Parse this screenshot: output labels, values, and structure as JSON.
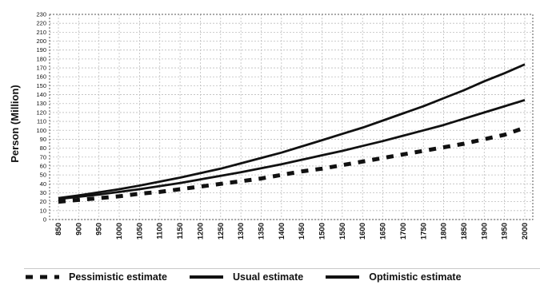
{
  "chart_data": {
    "type": "line",
    "ylabel": "Person (Million)",
    "xlabel": "",
    "x": [
      850,
      900,
      950,
      1000,
      1050,
      1100,
      1150,
      1200,
      1250,
      1300,
      1350,
      1400,
      1450,
      1500,
      1550,
      1600,
      1650,
      1700,
      1750,
      1800,
      1850,
      1900,
      1950,
      2000
    ],
    "xticks": [
      "850",
      "900",
      "950",
      "1000",
      "1050",
      "1100",
      "1150",
      "1200",
      "1250",
      "1300",
      "1350",
      "1400",
      "1450",
      "1500",
      "1550",
      "1600",
      "1650",
      "1700",
      "1750",
      "1800",
      "1850",
      "1900",
      "1950",
      "2000"
    ],
    "ylim": [
      0,
      230
    ],
    "yticks": [
      "0",
      "10",
      "20",
      "30",
      "40",
      "50",
      "60",
      "70",
      "80",
      "90",
      "100",
      "110",
      "120",
      "130",
      "140",
      "150",
      "160",
      "170",
      "180",
      "190",
      "200",
      "210",
      "220",
      "230"
    ],
    "grid": true,
    "legend_position": "bottom",
    "series": [
      {
        "name": "Pessimistic estimate",
        "style": "dashed",
        "color": "#111111",
        "values": [
          20,
          22,
          24,
          26,
          29,
          31,
          34,
          37,
          40,
          43,
          46,
          50,
          54,
          57,
          61,
          65,
          69,
          73,
          77,
          81,
          85,
          90,
          95,
          103
        ]
      },
      {
        "name": "Usual estimate",
        "style": "solid",
        "color": "#111111",
        "values": [
          23,
          25.5,
          28,
          31,
          34,
          37.5,
          41,
          45,
          49,
          53,
          57.5,
          62,
          67,
          72,
          77,
          82.5,
          88,
          94,
          100,
          106,
          113,
          120,
          127,
          134
        ]
      },
      {
        "name": "Optimistic estimate",
        "style": "solid",
        "color": "#111111",
        "values": [
          24,
          27,
          30.5,
          34,
          38,
          42.5,
          47,
          52,
          57,
          63,
          69,
          75,
          82,
          89,
          96,
          103,
          111,
          119,
          127,
          136,
          145,
          155,
          164,
          174
        ]
      }
    ]
  }
}
